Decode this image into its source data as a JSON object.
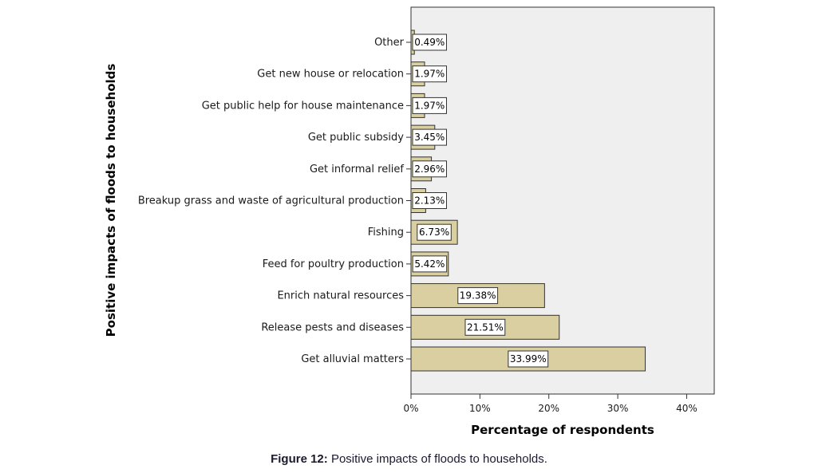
{
  "caption": {
    "label": "Figure 12:",
    "text": "Positive impacts of floods to households."
  },
  "colors": {
    "bar_fill": "#d9cfa0",
    "bar_stroke": "#333333",
    "plot_bg": "#efefef"
  },
  "chart_data": {
    "type": "bar",
    "orientation": "horizontal",
    "xlabel": "Percentage of respondents",
    "ylabel": "Positive impacts of floods to households",
    "xlim": [
      0,
      44
    ],
    "x_ticks": [
      "0%",
      "10%",
      "20%",
      "30%",
      "40%"
    ],
    "x_tick_values": [
      0,
      10,
      20,
      30,
      40
    ],
    "grid": false,
    "categories": [
      "Other",
      "Get new house or relocation",
      "Get public help for house maintenance",
      "Get public subsidy",
      "Get informal relief",
      "Breakup grass and waste of agricultural production",
      "Fishing",
      "Feed for poultry production",
      "Enrich natural resources",
      "Release pests and diseases",
      "Get  alluvial matters"
    ],
    "values": [
      0.49,
      1.97,
      1.97,
      3.45,
      2.96,
      2.13,
      6.73,
      5.42,
      19.38,
      21.51,
      33.99
    ],
    "data_labels": [
      "0.49%",
      "1.97%",
      "1.97%",
      "3.45%",
      "2.96%",
      "2.13%",
      "6.73%",
      "5.42%",
      "19.38%",
      "21.51%",
      "33.99%"
    ]
  }
}
